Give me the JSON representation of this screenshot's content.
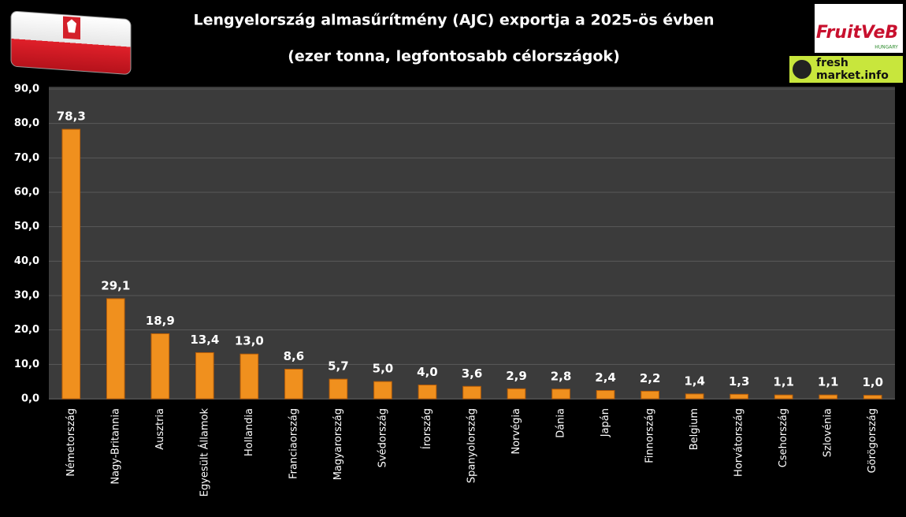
{
  "chart_data": {
    "type": "bar",
    "title": "Lengyelország almasűrítmény (AJC) exportja a 2025-ös évben",
    "subtitle": "(ezer tonna, legfontosabb célországok)",
    "logos": [
      "FruitVeB",
      "HUNGARY",
      "fresh",
      "market.info"
    ],
    "categories": [
      "Németország",
      "Nagy-Britannia",
      "Ausztria",
      "Egyesült Államok",
      "Hollandia",
      "Franciaország",
      "Magyarország",
      "Svédország",
      "Írország",
      "Spanyolország",
      "Norvégia",
      "Dánia",
      "Japán",
      "Finnország",
      "Belgium",
      "Horvátország",
      "Csehország",
      "Szlovénia",
      "Görögország"
    ],
    "values": [
      78.3,
      29.1,
      18.9,
      13.4,
      13.0,
      8.6,
      5.7,
      5.0,
      4.0,
      3.6,
      2.9,
      2.8,
      2.4,
      2.2,
      1.4,
      1.3,
      1.1,
      1.1,
      1.0
    ],
    "value_labels": [
      "78,3",
      "29,1",
      "18,9",
      "13,4",
      "13,0",
      "8,6",
      "5,7",
      "5,0",
      "4,0",
      "3,6",
      "2,9",
      "2,8",
      "2,4",
      "2,2",
      "1,4",
      "1,3",
      "1,1",
      "1,1",
      "1,0"
    ],
    "color": "#f0901e",
    "ylim": [
      0,
      90
    ],
    "yticks": [
      {
        "value": 0,
        "label": "0,0"
      },
      {
        "value": 10,
        "label": "10,0"
      },
      {
        "value": 20,
        "label": "20,0"
      },
      {
        "value": 30,
        "label": "30,0"
      },
      {
        "value": 40,
        "label": "40,0"
      },
      {
        "value": 50,
        "label": "50,0"
      },
      {
        "value": 60,
        "label": "60,0"
      },
      {
        "value": 70,
        "label": "70,0"
      },
      {
        "value": 80,
        "label": "80,0"
      },
      {
        "value": 90,
        "label": "90,0"
      }
    ],
    "grid": true
  }
}
